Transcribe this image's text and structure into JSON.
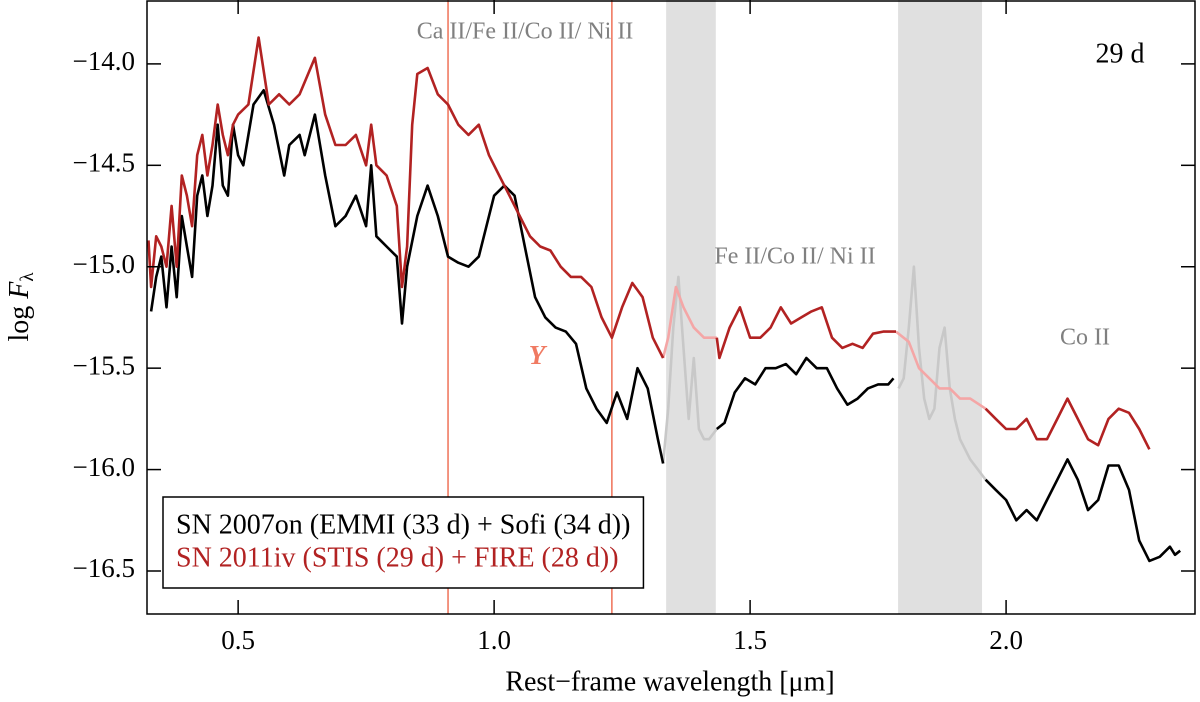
{
  "chart_data": {
    "type": "line",
    "xlabel": "Rest−frame wavelength [μm]",
    "ylabel": {
      "text": "log ",
      "symbol": "F",
      "subscript": "λ"
    },
    "xlim": [
      0.322,
      2.369
    ],
    "ylim": [
      -16.712,
      -13.685
    ],
    "xticks": [
      0.5,
      {
        "value": 1.0,
        "label": "1.0"
      },
      1.5,
      {
        "value": 2.0,
        "label": "2.0"
      }
    ],
    "yticks": [
      {
        "value": -16.5,
        "label": "−16.5"
      },
      {
        "value": -16.0,
        "label": "−16.0"
      },
      {
        "value": -15.5,
        "label": "−15.5"
      },
      {
        "value": -15.0,
        "label": "−15.0"
      },
      {
        "value": -14.5,
        "label": "−14.5"
      },
      {
        "value": -14.0,
        "label": "−14.0"
      }
    ],
    "legend": "lower left",
    "bands": [
      [
        1.336,
        1.433
      ],
      [
        1.789,
        1.953
      ]
    ],
    "band_color": "#e0e0e0",
    "vlines": [
      0.91,
      1.23
    ],
    "vline_color": "#f07a62",
    "annotations": [
      "Ca II/Fe II/Co II/ Ni II",
      "Fe II/Co II/ Ni II",
      "Co II",
      "Y",
      "29 d"
    ],
    "series": [
      {
        "name": "SN 2007on (EMMI (33 d) + Sofi (34 d))",
        "color": "#000000",
        "x": [
          0.33,
          0.34,
          0.35,
          0.36,
          0.37,
          0.38,
          0.39,
          0.4,
          0.41,
          0.42,
          0.43,
          0.44,
          0.45,
          0.46,
          0.47,
          0.48,
          0.49,
          0.5,
          0.51,
          0.52,
          0.53,
          0.55,
          0.57,
          0.59,
          0.6,
          0.62,
          0.63,
          0.65,
          0.67,
          0.69,
          0.71,
          0.73,
          0.75,
          0.76,
          0.77,
          0.79,
          0.81,
          0.82,
          0.83,
          0.85,
          0.87,
          0.89,
          0.91,
          0.93,
          0.95,
          0.97,
          1.0,
          1.02,
          1.04,
          1.06,
          1.08,
          1.1,
          1.12,
          1.14,
          1.16,
          1.18,
          1.2,
          1.22,
          1.24,
          1.26,
          1.28,
          1.3,
          1.32,
          1.33,
          1.38,
          1.435,
          1.45,
          1.47,
          1.49,
          1.51,
          1.53,
          1.55,
          1.57,
          1.59,
          1.61,
          1.63,
          1.65,
          1.67,
          1.69,
          1.71,
          1.73,
          1.75,
          1.77,
          1.78,
          1.87,
          1.96,
          1.98,
          2.0,
          2.02,
          2.04,
          2.06,
          2.08,
          2.1,
          2.12,
          2.14,
          2.16,
          2.18,
          2.2,
          2.22,
          2.24,
          2.26,
          2.28,
          2.3,
          2.32,
          2.33,
          2.34
        ],
        "values": [
          -15.22,
          -15.05,
          -14.95,
          -15.2,
          -14.9,
          -15.15,
          -14.75,
          -14.9,
          -15.05,
          -14.65,
          -14.55,
          -14.75,
          -14.6,
          -14.3,
          -14.6,
          -14.65,
          -14.3,
          -14.45,
          -14.5,
          -14.35,
          -14.2,
          -14.13,
          -14.3,
          -14.55,
          -14.4,
          -14.35,
          -14.45,
          -14.25,
          -14.55,
          -14.8,
          -14.75,
          -14.65,
          -14.8,
          -14.5,
          -14.85,
          -14.9,
          -14.95,
          -15.28,
          -15.0,
          -14.75,
          -14.6,
          -14.75,
          -14.95,
          -14.98,
          -15.0,
          -14.95,
          -14.65,
          -14.6,
          -14.65,
          -14.9,
          -15.15,
          -15.25,
          -15.3,
          -15.32,
          -15.38,
          -15.6,
          -15.7,
          -15.77,
          -15.62,
          -15.75,
          -15.5,
          -15.6,
          -15.85,
          -15.97,
          null,
          -15.8,
          -15.77,
          -15.62,
          -15.55,
          -15.58,
          -15.5,
          -15.5,
          -15.48,
          -15.53,
          -15.45,
          -15.5,
          -15.5,
          -15.6,
          -15.68,
          -15.65,
          -15.6,
          -15.58,
          -15.58,
          -15.55,
          null,
          -16.05,
          -16.1,
          -16.15,
          -16.25,
          -16.2,
          -16.25,
          -16.15,
          -16.05,
          -15.95,
          -16.05,
          -16.2,
          -16.15,
          -15.98,
          -15.98,
          -16.1,
          -16.35,
          -16.45,
          -16.43,
          -16.38,
          -16.42,
          -16.4
        ]
      },
      {
        "name": "SN 2011iv (STIS (29 d) + FIRE (28 d))",
        "color": "#b22222",
        "x": [
          0.325,
          0.33,
          0.34,
          0.35,
          0.36,
          0.37,
          0.38,
          0.39,
          0.4,
          0.41,
          0.42,
          0.43,
          0.44,
          0.45,
          0.46,
          0.47,
          0.48,
          0.49,
          0.5,
          0.52,
          0.54,
          0.56,
          0.58,
          0.6,
          0.62,
          0.65,
          0.67,
          0.69,
          0.71,
          0.73,
          0.75,
          0.76,
          0.77,
          0.79,
          0.81,
          0.82,
          0.83,
          0.84,
          0.85,
          0.87,
          0.89,
          0.91,
          0.93,
          0.95,
          0.97,
          0.99,
          1.01,
          1.03,
          1.05,
          1.07,
          1.09,
          1.11,
          1.13,
          1.15,
          1.17,
          1.19,
          1.21,
          1.23,
          1.25,
          1.27,
          1.29,
          1.31,
          1.33,
          1.38,
          1.435,
          1.44,
          1.46,
          1.48,
          1.5,
          1.52,
          1.54,
          1.56,
          1.58,
          1.6,
          1.62,
          1.64,
          1.66,
          1.68,
          1.7,
          1.72,
          1.74,
          1.76,
          1.785,
          1.87,
          1.96,
          1.98,
          2.0,
          2.02,
          2.04,
          2.06,
          2.08,
          2.1,
          2.12,
          2.14,
          2.16,
          2.18,
          2.2,
          2.22,
          2.24,
          2.26,
          2.28
        ],
        "values": [
          -14.87,
          -15.1,
          -14.85,
          -14.9,
          -15.0,
          -14.7,
          -15.0,
          -14.55,
          -14.65,
          -14.8,
          -14.45,
          -14.35,
          -14.55,
          -14.4,
          -14.2,
          -14.35,
          -14.45,
          -14.3,
          -14.25,
          -14.2,
          -13.87,
          -14.2,
          -14.15,
          -14.2,
          -14.15,
          -13.97,
          -14.25,
          -14.4,
          -14.4,
          -14.35,
          -14.5,
          -14.3,
          -14.5,
          -14.55,
          -14.7,
          -15.1,
          -14.9,
          -14.3,
          -14.05,
          -14.02,
          -14.15,
          -14.2,
          -14.3,
          -14.35,
          -14.3,
          -14.45,
          -14.55,
          -14.65,
          -14.75,
          -14.85,
          -14.9,
          -14.92,
          -15.0,
          -15.05,
          -15.05,
          -15.1,
          -15.25,
          -15.35,
          -15.2,
          -15.08,
          -15.15,
          -15.35,
          -15.45,
          null,
          -15.35,
          -15.45,
          -15.3,
          -15.2,
          -15.35,
          -15.35,
          -15.3,
          -15.2,
          -15.28,
          -15.25,
          -15.22,
          -15.2,
          -15.35,
          -15.4,
          -15.38,
          -15.4,
          -15.33,
          -15.32,
          -15.32,
          null,
          -15.7,
          -15.75,
          -15.8,
          -15.8,
          -15.75,
          -15.85,
          -15.85,
          -15.75,
          -15.65,
          -15.75,
          -15.85,
          -15.88,
          -15.75,
          -15.7,
          -15.72,
          -15.8,
          -15.9
        ]
      },
      {
        "color": "#c8c8c8",
        "x": [
          1.33,
          1.34,
          1.35,
          1.36,
          1.37,
          1.38,
          1.39,
          1.4,
          1.41,
          1.42,
          1.435,
          1.78,
          1.79,
          1.8,
          1.81,
          1.82,
          1.83,
          1.84,
          1.85,
          1.86,
          1.87,
          1.88,
          1.89,
          1.9,
          1.91,
          1.93,
          1.96
        ],
        "values": [
          -15.97,
          -15.7,
          -15.3,
          -15.05,
          -15.4,
          -15.75,
          -15.45,
          -15.8,
          -15.85,
          -15.85,
          -15.8,
          null,
          -15.6,
          -15.55,
          -15.3,
          -15.0,
          -15.4,
          -15.65,
          -15.75,
          -15.7,
          -15.4,
          -15.3,
          -15.6,
          -15.75,
          -15.85,
          -15.95,
          -16.05
        ]
      },
      {
        "color": "#f4a6a6",
        "x": [
          1.33,
          1.34,
          1.355,
          1.37,
          1.39,
          1.41,
          1.435,
          1.76,
          1.785,
          1.81,
          1.83,
          1.85,
          1.87,
          1.89,
          1.91,
          1.93,
          1.96
        ],
        "values": [
          -15.45,
          -15.35,
          -15.1,
          -15.2,
          -15.3,
          -15.35,
          -15.35,
          null,
          -15.32,
          -15.37,
          -15.5,
          -15.55,
          -15.6,
          -15.6,
          -15.65,
          -15.65,
          -15.7
        ]
      }
    ]
  }
}
